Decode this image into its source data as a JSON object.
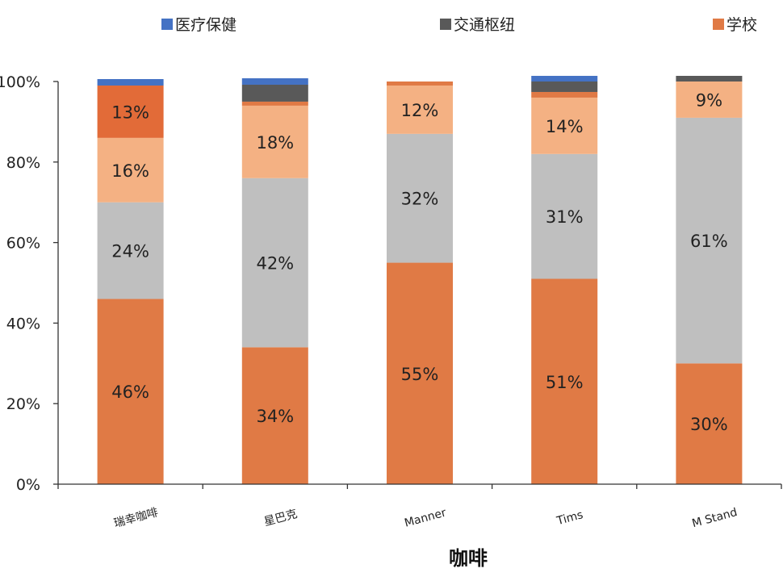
{
  "chart_data": {
    "type": "bar",
    "stacked": true,
    "title": "",
    "xlabel": "咖啡",
    "ylabel": "",
    "ylim": [
      0,
      100
    ],
    "y_ticks": [
      "0%",
      "20%",
      "40%",
      "60%",
      "80%",
      "100%"
    ],
    "legend_position": "top",
    "categories": [
      "瑞幸咖啡",
      "星巴克",
      "Manner",
      "Tims",
      "M Stand"
    ],
    "legend": [
      {
        "name": "医疗保健",
        "color": "#4472C4"
      },
      {
        "name": "交通枢纽",
        "color": "#595959"
      },
      {
        "name": "学校",
        "color": "#E07A45"
      }
    ],
    "series": [
      {
        "color": "#E07A45",
        "values": [
          46,
          34,
          55,
          51,
          30
        ],
        "labels": [
          "46%",
          "34%",
          "55%",
          "51%",
          "30%"
        ]
      },
      {
        "color": "#BFBFBF",
        "values": [
          24,
          42,
          32,
          31,
          61
        ],
        "labels": [
          "24%",
          "42%",
          "32%",
          "31%",
          "61%"
        ]
      },
      {
        "color": "#F4B183",
        "values": [
          16,
          18,
          12,
          14,
          9
        ],
        "labels": [
          "16%",
          "18%",
          "12%",
          "14%",
          "9%"
        ]
      },
      {
        "color": "#E26B38",
        "values": [
          13,
          0,
          0,
          0,
          0
        ],
        "labels": [
          "13%",
          "",
          "",
          "",
          ""
        ]
      },
      {
        "name": "学校",
        "color": "#E07A45",
        "values": [
          0,
          1,
          1,
          1.4,
          0
        ],
        "labels": [
          "",
          "",
          "",
          "",
          ""
        ]
      },
      {
        "name": "交通枢纽",
        "color": "#595959",
        "values": [
          0,
          4.2,
          0,
          2.6,
          1.4
        ],
        "labels": [
          "",
          "",
          "",
          "",
          ""
        ]
      },
      {
        "name": "医疗保健",
        "color": "#4472C4",
        "values": [
          1.6,
          1.6,
          0,
          1.4,
          0
        ],
        "labels": [
          "",
          "",
          "",
          "",
          ""
        ]
      }
    ]
  }
}
